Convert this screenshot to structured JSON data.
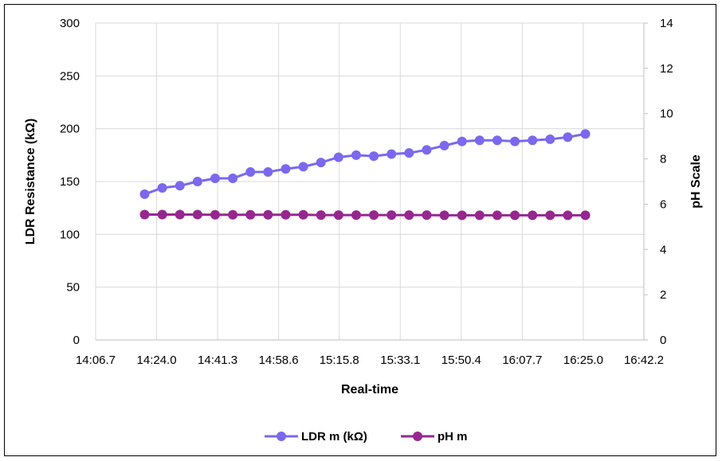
{
  "chart_data": {
    "type": "line",
    "title": "",
    "xlabel": "Real-time",
    "ylabel_left": "LDR Resistance (kΩ)",
    "ylabel_right": "pH Scale",
    "x_ticks": [
      "14:06.7",
      "14:24.0",
      "14:41.3",
      "14:58.6",
      "15:15.8",
      "15:33.1",
      "15:50.4",
      "16:07.7",
      "16:25.0",
      "16:42.2"
    ],
    "x_range": [
      "14:06.7",
      "16:42.2"
    ],
    "y_left_range": [
      0,
      300
    ],
    "y_left_ticks": [
      "0",
      "50",
      "100",
      "150",
      "200",
      "250",
      "300"
    ],
    "y_right_range": [
      0,
      14
    ],
    "y_right_ticks": [
      "0",
      "2",
      "4",
      "6",
      "8",
      "10",
      "12",
      "14"
    ],
    "grid": true,
    "legend_position": "bottom",
    "x": [
      "14:20.6",
      "14:25.6",
      "14:30.6",
      "14:35.6",
      "14:40.6",
      "14:45.6",
      "14:50.6",
      "14:55.6",
      "15:00.6",
      "15:05.6",
      "15:10.6",
      "15:15.6",
      "15:20.6",
      "15:25.6",
      "15:30.6",
      "15:35.6",
      "15:40.6",
      "15:45.6",
      "15:50.6",
      "15:55.6",
      "16:00.6",
      "16:05.6",
      "16:10.6",
      "16:15.6",
      "16:20.6",
      "16:25.6"
    ],
    "series": [
      {
        "name": "LDR m (kΩ)",
        "axis": "left",
        "color": "#7b68ee",
        "values": [
          138,
          144,
          146,
          150,
          153,
          153,
          159,
          159,
          162,
          164,
          168,
          173,
          175,
          174,
          176,
          177,
          180,
          184,
          188,
          189,
          189,
          188,
          189,
          190,
          192,
          195
        ]
      },
      {
        "name": "pH m",
        "axis": "right",
        "color": "#96278f",
        "values": [
          5.54,
          5.54,
          5.54,
          5.54,
          5.53,
          5.53,
          5.53,
          5.53,
          5.53,
          5.53,
          5.52,
          5.52,
          5.52,
          5.52,
          5.52,
          5.52,
          5.52,
          5.51,
          5.51,
          5.51,
          5.51,
          5.51,
          5.51,
          5.51,
          5.51,
          5.51
        ]
      }
    ]
  }
}
